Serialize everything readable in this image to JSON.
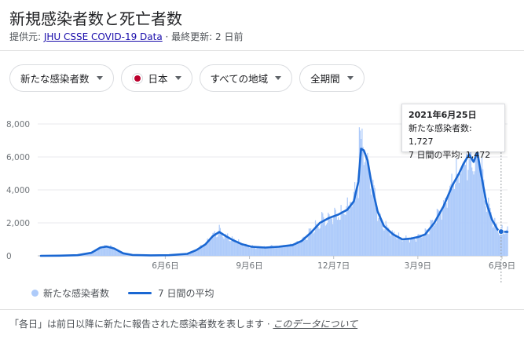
{
  "header": {
    "title": "新規感染者数と死亡者数",
    "source_prefix": "提供元: ",
    "source_link": "JHU CSSE COVID-19 Data",
    "updated": " · 最終更新: 2 日前"
  },
  "filters": [
    {
      "label": "新たな感染者数"
    },
    {
      "label": "日本"
    },
    {
      "label": "すべての地域"
    },
    {
      "label": "全期間"
    }
  ],
  "legend": {
    "bars": "新たな感染者数",
    "line": "7 日間の平均"
  },
  "tooltip": {
    "date": "2021年6月25日",
    "cases_label": "新たな感染者数: ",
    "cases_value": "1,727",
    "avg_label": "7 日間の平均: ",
    "avg_value": "1,472"
  },
  "footer": {
    "note": "「各日」は前日以降に新たに報告された感染者数を表します",
    "link": "このデータについて"
  },
  "colors": {
    "bars": "#aecbfa",
    "line": "#1a67d2",
    "grid": "#e8eaed"
  },
  "chart_data": {
    "type": "bar",
    "x_unit": "days since 2020-01-22",
    "ylim": [
      0,
      8000
    ],
    "yticks": [
      0,
      2000,
      4000,
      6000,
      8000
    ],
    "ytick_labels": [
      "0",
      "2,000",
      "4,000",
      "6,000",
      "8,000"
    ],
    "xticks": [
      {
        "day": 136,
        "label": "6月6日"
      },
      {
        "day": 228,
        "label": "9月6日"
      },
      {
        "day": 320,
        "label": "12月7日"
      },
      {
        "day": 412,
        "label": "3月9日"
      },
      {
        "day": 504,
        "label": "6月9日"
      }
    ],
    "series": [
      {
        "name": "新たな感染者数",
        "style": "bars"
      },
      {
        "name": "7 日間の平均",
        "style": "line",
        "points": [
          [
            0,
            0
          ],
          [
            20,
            10
          ],
          [
            40,
            40
          ],
          [
            55,
            180
          ],
          [
            65,
            500
          ],
          [
            72,
            560
          ],
          [
            80,
            450
          ],
          [
            90,
            150
          ],
          [
            100,
            50
          ],
          [
            120,
            30
          ],
          [
            140,
            40
          ],
          [
            160,
            120
          ],
          [
            170,
            350
          ],
          [
            180,
            700
          ],
          [
            188,
            1200
          ],
          [
            195,
            1450
          ],
          [
            202,
            1200
          ],
          [
            210,
            950
          ],
          [
            220,
            700
          ],
          [
            230,
            550
          ],
          [
            245,
            500
          ],
          [
            260,
            550
          ],
          [
            275,
            650
          ],
          [
            285,
            900
          ],
          [
            295,
            1400
          ],
          [
            305,
            2000
          ],
          [
            315,
            2300
          ],
          [
            325,
            2500
          ],
          [
            335,
            2800
          ],
          [
            342,
            3300
          ],
          [
            347,
            4500
          ],
          [
            350,
            6500
          ],
          [
            353,
            6400
          ],
          [
            357,
            5800
          ],
          [
            362,
            4200
          ],
          [
            368,
            2700
          ],
          [
            375,
            1800
          ],
          [
            385,
            1300
          ],
          [
            395,
            1000
          ],
          [
            405,
            1050
          ],
          [
            413,
            1150
          ],
          [
            420,
            1300
          ],
          [
            430,
            2000
          ],
          [
            440,
            3000
          ],
          [
            450,
            4300
          ],
          [
            457,
            5000
          ],
          [
            462,
            5600
          ],
          [
            468,
            6150
          ],
          [
            473,
            5700
          ],
          [
            477,
            6300
          ],
          [
            481,
            5000
          ],
          [
            487,
            3200
          ],
          [
            493,
            2200
          ],
          [
            499,
            1600
          ],
          [
            503,
            1472
          ],
          [
            510,
            1450
          ]
        ]
      }
    ],
    "note": "Daily bars follow the 7-day average with day-to-day noise; peak about 7,800 in Jan 2021"
  }
}
